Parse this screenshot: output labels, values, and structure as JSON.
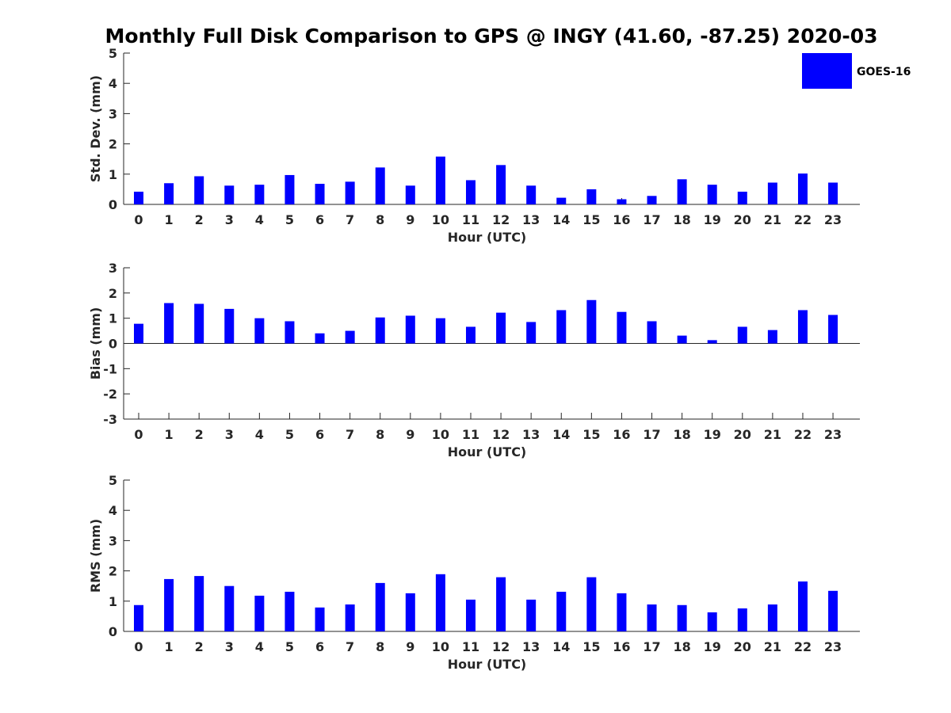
{
  "title": "Monthly Full Disk Comparison to GPS @ INGY (41.60, -87.25) 2020-03",
  "legend": {
    "label": "GOES-16",
    "color": "#0000ff",
    "placement": "top-right"
  },
  "chart_data": [
    {
      "type": "bar",
      "xlabel": "Hour (UTC)",
      "ylabel": "Std. Dev. (mm)",
      "ylim": [
        0,
        5
      ],
      "yticks": [
        "0",
        "1",
        "2",
        "3",
        "4",
        "5"
      ],
      "categories": [
        "0",
        "1",
        "2",
        "3",
        "4",
        "5",
        "6",
        "7",
        "8",
        "9",
        "10",
        "11",
        "12",
        "13",
        "14",
        "15",
        "16",
        "17",
        "18",
        "19",
        "20",
        "21",
        "22",
        "23"
      ],
      "series": [
        {
          "name": "GOES-16",
          "values": [
            0.42,
            0.7,
            0.93,
            0.62,
            0.65,
            0.97,
            0.68,
            0.75,
            1.22,
            0.62,
            1.58,
            0.8,
            1.3,
            0.62,
            0.22,
            0.5,
            0.17,
            0.28,
            0.83,
            0.65,
            0.42,
            0.72,
            1.02,
            0.72
          ]
        }
      ],
      "grid": false
    },
    {
      "type": "bar",
      "xlabel": "Hour (UTC)",
      "ylabel": "Bias (mm)",
      "ylim": [
        -3,
        3
      ],
      "yticks": [
        "-3",
        "-2",
        "-1",
        "0",
        "1",
        "2",
        "3"
      ],
      "categories": [
        "0",
        "1",
        "2",
        "3",
        "4",
        "5",
        "6",
        "7",
        "8",
        "9",
        "10",
        "11",
        "12",
        "13",
        "14",
        "15",
        "16",
        "17",
        "18",
        "19",
        "20",
        "21",
        "22",
        "23"
      ],
      "series": [
        {
          "name": "GOES-16",
          "values": [
            0.78,
            1.6,
            1.57,
            1.37,
            1.0,
            0.88,
            0.4,
            0.5,
            1.03,
            1.1,
            1.0,
            0.66,
            1.22,
            0.85,
            1.32,
            1.72,
            1.25,
            0.88,
            0.31,
            0.13,
            0.66,
            0.53,
            1.32,
            1.13
          ]
        }
      ],
      "grid": false
    },
    {
      "type": "bar",
      "xlabel": "Hour (UTC)",
      "ylabel": "RMS (mm)",
      "ylim": [
        0,
        5
      ],
      "yticks": [
        "0",
        "1",
        "2",
        "3",
        "4",
        "5"
      ],
      "categories": [
        "0",
        "1",
        "2",
        "3",
        "4",
        "5",
        "6",
        "7",
        "8",
        "9",
        "10",
        "11",
        "12",
        "13",
        "14",
        "15",
        "16",
        "17",
        "18",
        "19",
        "20",
        "21",
        "22",
        "23"
      ],
      "series": [
        {
          "name": "GOES-16",
          "values": [
            0.87,
            1.73,
            1.83,
            1.5,
            1.18,
            1.31,
            0.79,
            0.89,
            1.6,
            1.26,
            1.89,
            1.05,
            1.79,
            1.05,
            1.31,
            1.79,
            1.26,
            0.89,
            0.87,
            0.63,
            0.76,
            0.89,
            1.65,
            1.34
          ]
        }
      ],
      "grid": false
    }
  ]
}
